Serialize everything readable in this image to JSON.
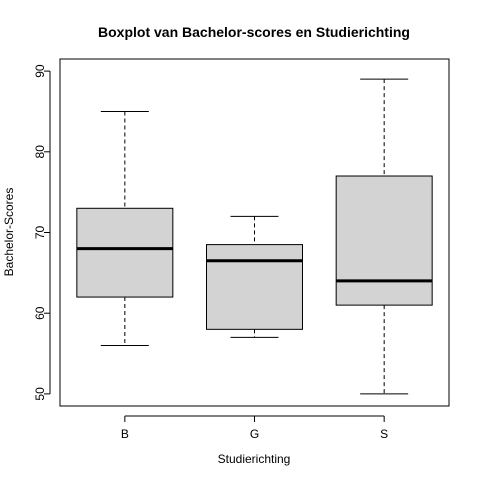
{
  "chart_data": {
    "type": "boxplot",
    "title": "Boxplot van Bachelor-scores en Studierichting",
    "xlabel": "Studierichting",
    "ylabel": "Bachelor-Scores",
    "ylim": [
      48.5,
      91.5
    ],
    "yticks": [
      "50",
      "60",
      "70",
      "80",
      "90"
    ],
    "categories": [
      "B",
      "G",
      "S"
    ],
    "boxes": [
      {
        "category": "B",
        "min": 56,
        "q1": 62,
        "median": 68,
        "q3": 73,
        "max": 85
      },
      {
        "category": "G",
        "min": 57,
        "q1": 58,
        "median": 66.5,
        "q3": 68.5,
        "max": 72
      },
      {
        "category": "S",
        "min": 50,
        "q1": 61,
        "median": 64,
        "q3": 77,
        "max": 89
      }
    ],
    "box_fill": "#d3d3d3",
    "grid": false
  }
}
